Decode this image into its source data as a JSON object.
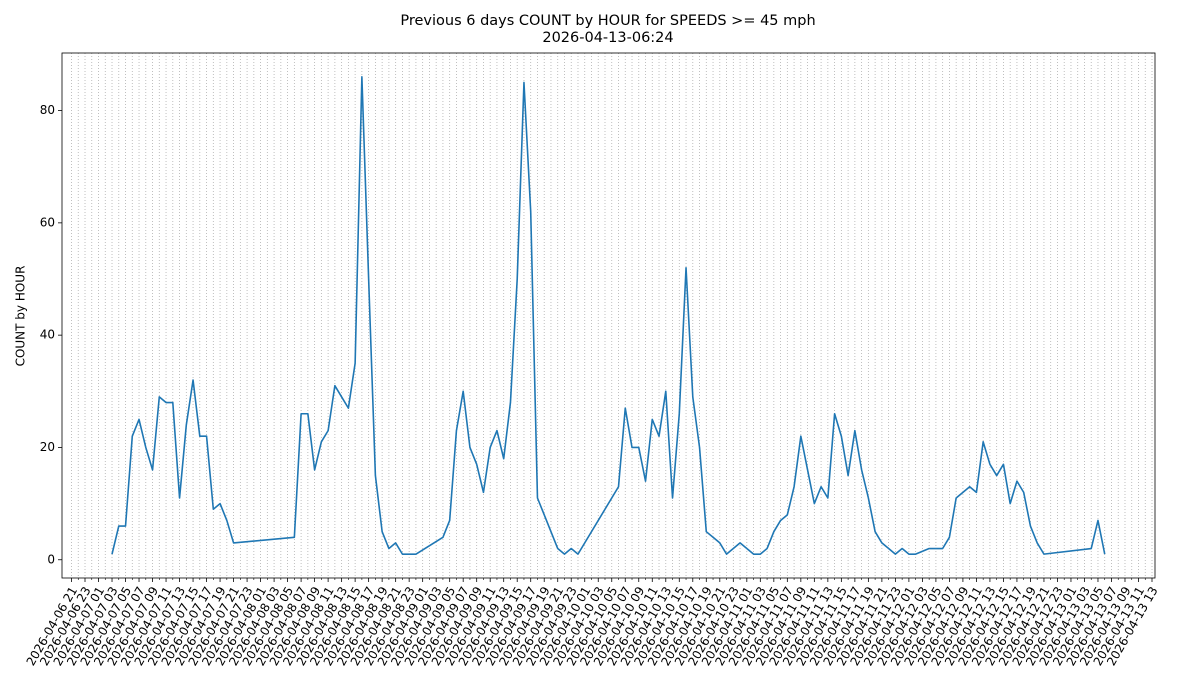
{
  "chart_data": {
    "type": "line",
    "title": "Previous 6 days COUNT by HOUR for SPEEDS >= 45 mph",
    "subtitle": "2026-04-13-06:24",
    "y_label": "COUNT by HOUR",
    "color": "#1f77b4",
    "grid": "x",
    "ylim": [
      -3.25,
      90.25
    ],
    "yticks": [
      0,
      20,
      40,
      60,
      80
    ],
    "xlim": [
      "2026-04-06 21",
      "2026-04-13 13"
    ],
    "xticks": [
      "2026-04-06 21",
      "2026-04-06 23",
      "2026-04-07 01",
      "2026-04-07 03",
      "2026-04-07 05",
      "2026-04-07 07",
      "2026-04-07 09",
      "2026-04-07 11",
      "2026-04-07 13",
      "2026-04-07 15",
      "2026-04-07 17",
      "2026-04-07 19",
      "2026-04-07 21",
      "2026-04-07 23",
      "2026-04-08 01",
      "2026-04-08 03",
      "2026-04-08 05",
      "2026-04-08 07",
      "2026-04-08 09",
      "2026-04-08 11",
      "2026-04-08 13",
      "2026-04-08 15",
      "2026-04-08 17",
      "2026-04-08 19",
      "2026-04-08 21",
      "2026-04-08 23",
      "2026-04-09 01",
      "2026-04-09 03",
      "2026-04-09 05",
      "2026-04-09 07",
      "2026-04-09 09",
      "2026-04-09 11",
      "2026-04-09 13",
      "2026-04-09 15",
      "2026-04-09 17",
      "2026-04-09 19",
      "2026-04-09 21",
      "2026-04-09 23",
      "2026-04-10 01",
      "2026-04-10 03",
      "2026-04-10 05",
      "2026-04-10 07",
      "2026-04-10 09",
      "2026-04-10 11",
      "2026-04-10 13",
      "2026-04-10 15",
      "2026-04-10 17",
      "2026-04-10 19",
      "2026-04-10 21",
      "2026-04-10 23",
      "2026-04-11 01",
      "2026-04-11 03",
      "2026-04-11 05",
      "2026-04-11 07",
      "2026-04-11 09",
      "2026-04-11 11",
      "2026-04-11 13",
      "2026-04-11 15",
      "2026-04-11 17",
      "2026-04-11 19",
      "2026-04-11 21",
      "2026-04-11 23",
      "2026-04-12 01",
      "2026-04-12 03",
      "2026-04-12 05",
      "2026-04-12 07",
      "2026-04-12 09",
      "2026-04-12 11",
      "2026-04-12 13",
      "2026-04-12 15",
      "2026-04-12 17",
      "2026-04-12 19",
      "2026-04-12 21",
      "2026-04-12 23",
      "2026-04-13 01",
      "2026-04-13 03",
      "2026-04-13 05",
      "2026-04-13 07",
      "2026-04-13 09",
      "2026-04-13 11",
      "2026-04-13 13"
    ],
    "x": [
      "2026-04-07 03",
      "2026-04-07 04",
      "2026-04-07 05",
      "2026-04-07 06",
      "2026-04-07 07",
      "2026-04-07 08",
      "2026-04-07 09",
      "2026-04-07 10",
      "2026-04-07 11",
      "2026-04-07 12",
      "2026-04-07 13",
      "2026-04-07 14",
      "2026-04-07 15",
      "2026-04-07 16",
      "2026-04-07 17",
      "2026-04-07 18",
      "2026-04-07 19",
      "2026-04-07 20",
      "2026-04-07 21",
      "2026-04-08 06",
      "2026-04-08 07",
      "2026-04-08 08",
      "2026-04-08 09",
      "2026-04-08 10",
      "2026-04-08 11",
      "2026-04-08 12",
      "2026-04-08 13",
      "2026-04-08 14",
      "2026-04-08 15",
      "2026-04-08 16",
      "2026-04-08 17",
      "2026-04-08 18",
      "2026-04-08 19",
      "2026-04-08 20",
      "2026-04-08 21",
      "2026-04-08 22",
      "2026-04-08 23",
      "2026-04-09 00",
      "2026-04-09 04",
      "2026-04-09 05",
      "2026-04-09 06",
      "2026-04-09 07",
      "2026-04-09 08",
      "2026-04-09 09",
      "2026-04-09 10",
      "2026-04-09 11",
      "2026-04-09 12",
      "2026-04-09 13",
      "2026-04-09 14",
      "2026-04-09 15",
      "2026-04-09 16",
      "2026-04-09 17",
      "2026-04-09 18",
      "2026-04-09 19",
      "2026-04-09 20",
      "2026-04-09 21",
      "2026-04-09 22",
      "2026-04-09 23",
      "2026-04-10 00",
      "2026-04-10 06",
      "2026-04-10 07",
      "2026-04-10 08",
      "2026-04-10 09",
      "2026-04-10 10",
      "2026-04-10 11",
      "2026-04-10 12",
      "2026-04-10 13",
      "2026-04-10 14",
      "2026-04-10 15",
      "2026-04-10 16",
      "2026-04-10 17",
      "2026-04-10 18",
      "2026-04-10 19",
      "2026-04-10 20",
      "2026-04-10 21",
      "2026-04-10 22",
      "2026-04-10 23",
      "2026-04-11 00",
      "2026-04-11 01",
      "2026-04-11 02",
      "2026-04-11 03",
      "2026-04-11 04",
      "2026-04-11 05",
      "2026-04-11 06",
      "2026-04-11 07",
      "2026-04-11 08",
      "2026-04-11 09",
      "2026-04-11 10",
      "2026-04-11 11",
      "2026-04-11 12",
      "2026-04-11 13",
      "2026-04-11 14",
      "2026-04-11 15",
      "2026-04-11 16",
      "2026-04-11 17",
      "2026-04-11 18",
      "2026-04-11 19",
      "2026-04-11 20",
      "2026-04-11 21",
      "2026-04-11 22",
      "2026-04-11 23",
      "2026-04-12 00",
      "2026-04-12 01",
      "2026-04-12 02",
      "2026-04-12 04",
      "2026-04-12 06",
      "2026-04-12 07",
      "2026-04-12 08",
      "2026-04-12 09",
      "2026-04-12 10",
      "2026-04-12 11",
      "2026-04-12 12",
      "2026-04-12 13",
      "2026-04-12 14",
      "2026-04-12 15",
      "2026-04-12 16",
      "2026-04-12 17",
      "2026-04-12 18",
      "2026-04-12 19",
      "2026-04-12 20",
      "2026-04-12 21",
      "2026-04-13 04",
      "2026-04-13 05",
      "2026-04-13 06"
    ],
    "values": [
      1,
      6,
      6,
      22,
      25,
      20,
      16,
      29,
      28,
      28,
      11,
      24,
      32,
      22,
      22,
      9,
      10,
      7,
      3,
      4,
      26,
      26,
      16,
      21,
      23,
      31,
      29,
      27,
      35,
      86,
      50,
      15,
      5,
      2,
      3,
      1,
      1,
      1,
      4,
      7,
      23,
      30,
      20,
      17,
      12,
      20,
      23,
      18,
      28,
      50,
      85,
      62,
      11,
      8,
      5,
      2,
      1,
      2,
      1,
      13,
      27,
      20,
      20,
      14,
      25,
      22,
      30,
      11,
      26,
      52,
      29,
      20,
      5,
      4,
      3,
      1,
      2,
      3,
      2,
      1,
      1,
      2,
      5,
      7,
      8,
      13,
      22,
      16,
      10,
      13,
      11,
      26,
      22,
      15,
      23,
      16,
      11,
      5,
      3,
      2,
      1,
      2,
      1,
      1,
      2,
      2,
      4,
      11,
      12,
      13,
      12,
      21,
      17,
      15,
      17,
      10,
      14,
      12,
      6,
      3,
      1,
      2,
      7,
      1
    ]
  }
}
